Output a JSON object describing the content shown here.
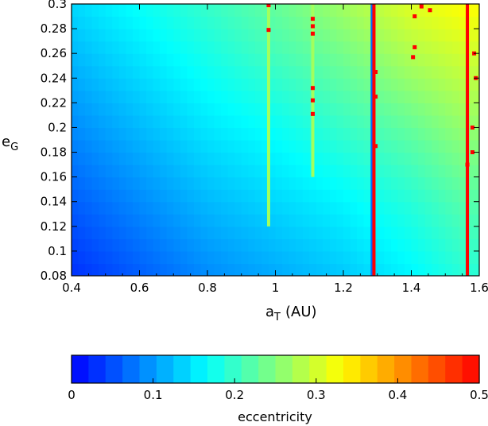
{
  "chart_data": [
    {
      "type": "heatmap",
      "title": "",
      "xlabel": "a",
      "xlabel_sub": "T",
      "xlabel_unit": "(AU)",
      "ylabel": "e",
      "ylabel_sub": "G",
      "xlim": [
        0.4,
        1.6
      ],
      "ylim": [
        0.08,
        0.3
      ],
      "xticks": [
        0.4,
        0.6,
        0.8,
        1.0,
        1.2,
        1.4,
        1.6
      ],
      "xtick_labels": [
        "0.4",
        "0.6",
        "0.8",
        "1",
        "1.2",
        "1.4",
        "1.6"
      ],
      "yticks": [
        0.08,
        0.1,
        0.12,
        0.14,
        0.16,
        0.18,
        0.2,
        0.22,
        0.24,
        0.26,
        0.28,
        0.3
      ],
      "ytick_labels": [
        "0.08",
        "0.1",
        "0.12",
        "0.14",
        "0.16",
        "0.18",
        "0.2",
        "0.22",
        "0.24",
        "0.26",
        "0.28",
        "0.3"
      ],
      "grid": false,
      "x_samples": [
        0.4,
        0.6,
        0.8,
        1.0,
        1.2,
        1.4,
        1.55
      ],
      "y_samples": [
        0.08,
        0.14,
        0.2,
        0.26,
        0.3
      ],
      "z_grid": [
        [
          0.03,
          0.06,
          0.09,
          0.11,
          0.13,
          0.16,
          0.19
        ],
        [
          0.06,
          0.09,
          0.12,
          0.14,
          0.16,
          0.19,
          0.22
        ],
        [
          0.09,
          0.12,
          0.15,
          0.17,
          0.2,
          0.23,
          0.26
        ],
        [
          0.12,
          0.15,
          0.18,
          0.21,
          0.24,
          0.28,
          0.3
        ],
        [
          0.14,
          0.17,
          0.2,
          0.23,
          0.27,
          0.31,
          0.33
        ]
      ],
      "vertical_features": [
        {
          "x": 0.98,
          "value": 0.27,
          "from_y": 0.12
        },
        {
          "x": 1.11,
          "value": 0.27,
          "from_y": 0.16
        },
        {
          "x": 1.285,
          "value": 0.07,
          "from_y": 0.08
        },
        {
          "x": 1.29,
          "value": 0.5,
          "from_y": 0.08
        },
        {
          "x": 1.565,
          "value": 0.5,
          "from_y": 0.08
        }
      ],
      "chaotic_points": [
        {
          "x": 0.98,
          "y": 0.299
        },
        {
          "x": 0.98,
          "y": 0.279
        },
        {
          "x": 1.11,
          "y": 0.288
        },
        {
          "x": 1.11,
          "y": 0.282
        },
        {
          "x": 1.11,
          "y": 0.276
        },
        {
          "x": 1.11,
          "y": 0.232
        },
        {
          "x": 1.11,
          "y": 0.222
        },
        {
          "x": 1.11,
          "y": 0.211
        },
        {
          "x": 1.295,
          "y": 0.245
        },
        {
          "x": 1.295,
          "y": 0.225
        },
        {
          "x": 1.295,
          "y": 0.185
        },
        {
          "x": 1.41,
          "y": 0.29
        },
        {
          "x": 1.41,
          "y": 0.265
        },
        {
          "x": 1.405,
          "y": 0.257
        },
        {
          "x": 1.43,
          "y": 0.298
        },
        {
          "x": 1.455,
          "y": 0.295
        },
        {
          "x": 1.58,
          "y": 0.2
        },
        {
          "x": 1.58,
          "y": 0.18
        },
        {
          "x": 1.585,
          "y": 0.26
        },
        {
          "x": 1.59,
          "y": 0.24
        },
        {
          "x": 1.565,
          "y": 0.17
        }
      ]
    },
    {
      "type": "colorbar",
      "label": "eccentricity",
      "range": [
        0,
        0.5
      ],
      "ticks": [
        0,
        0.1,
        0.2,
        0.3,
        0.4,
        0.5
      ],
      "tick_labels": [
        "0",
        "0.1",
        "0.2",
        "0.3",
        "0.4",
        "0.5"
      ],
      "colors": [
        "#0000ff",
        "#00ffff",
        "#ffff00",
        "#ff0000"
      ],
      "color_stops": [
        0,
        0.33,
        0.66,
        1
      ]
    }
  ]
}
